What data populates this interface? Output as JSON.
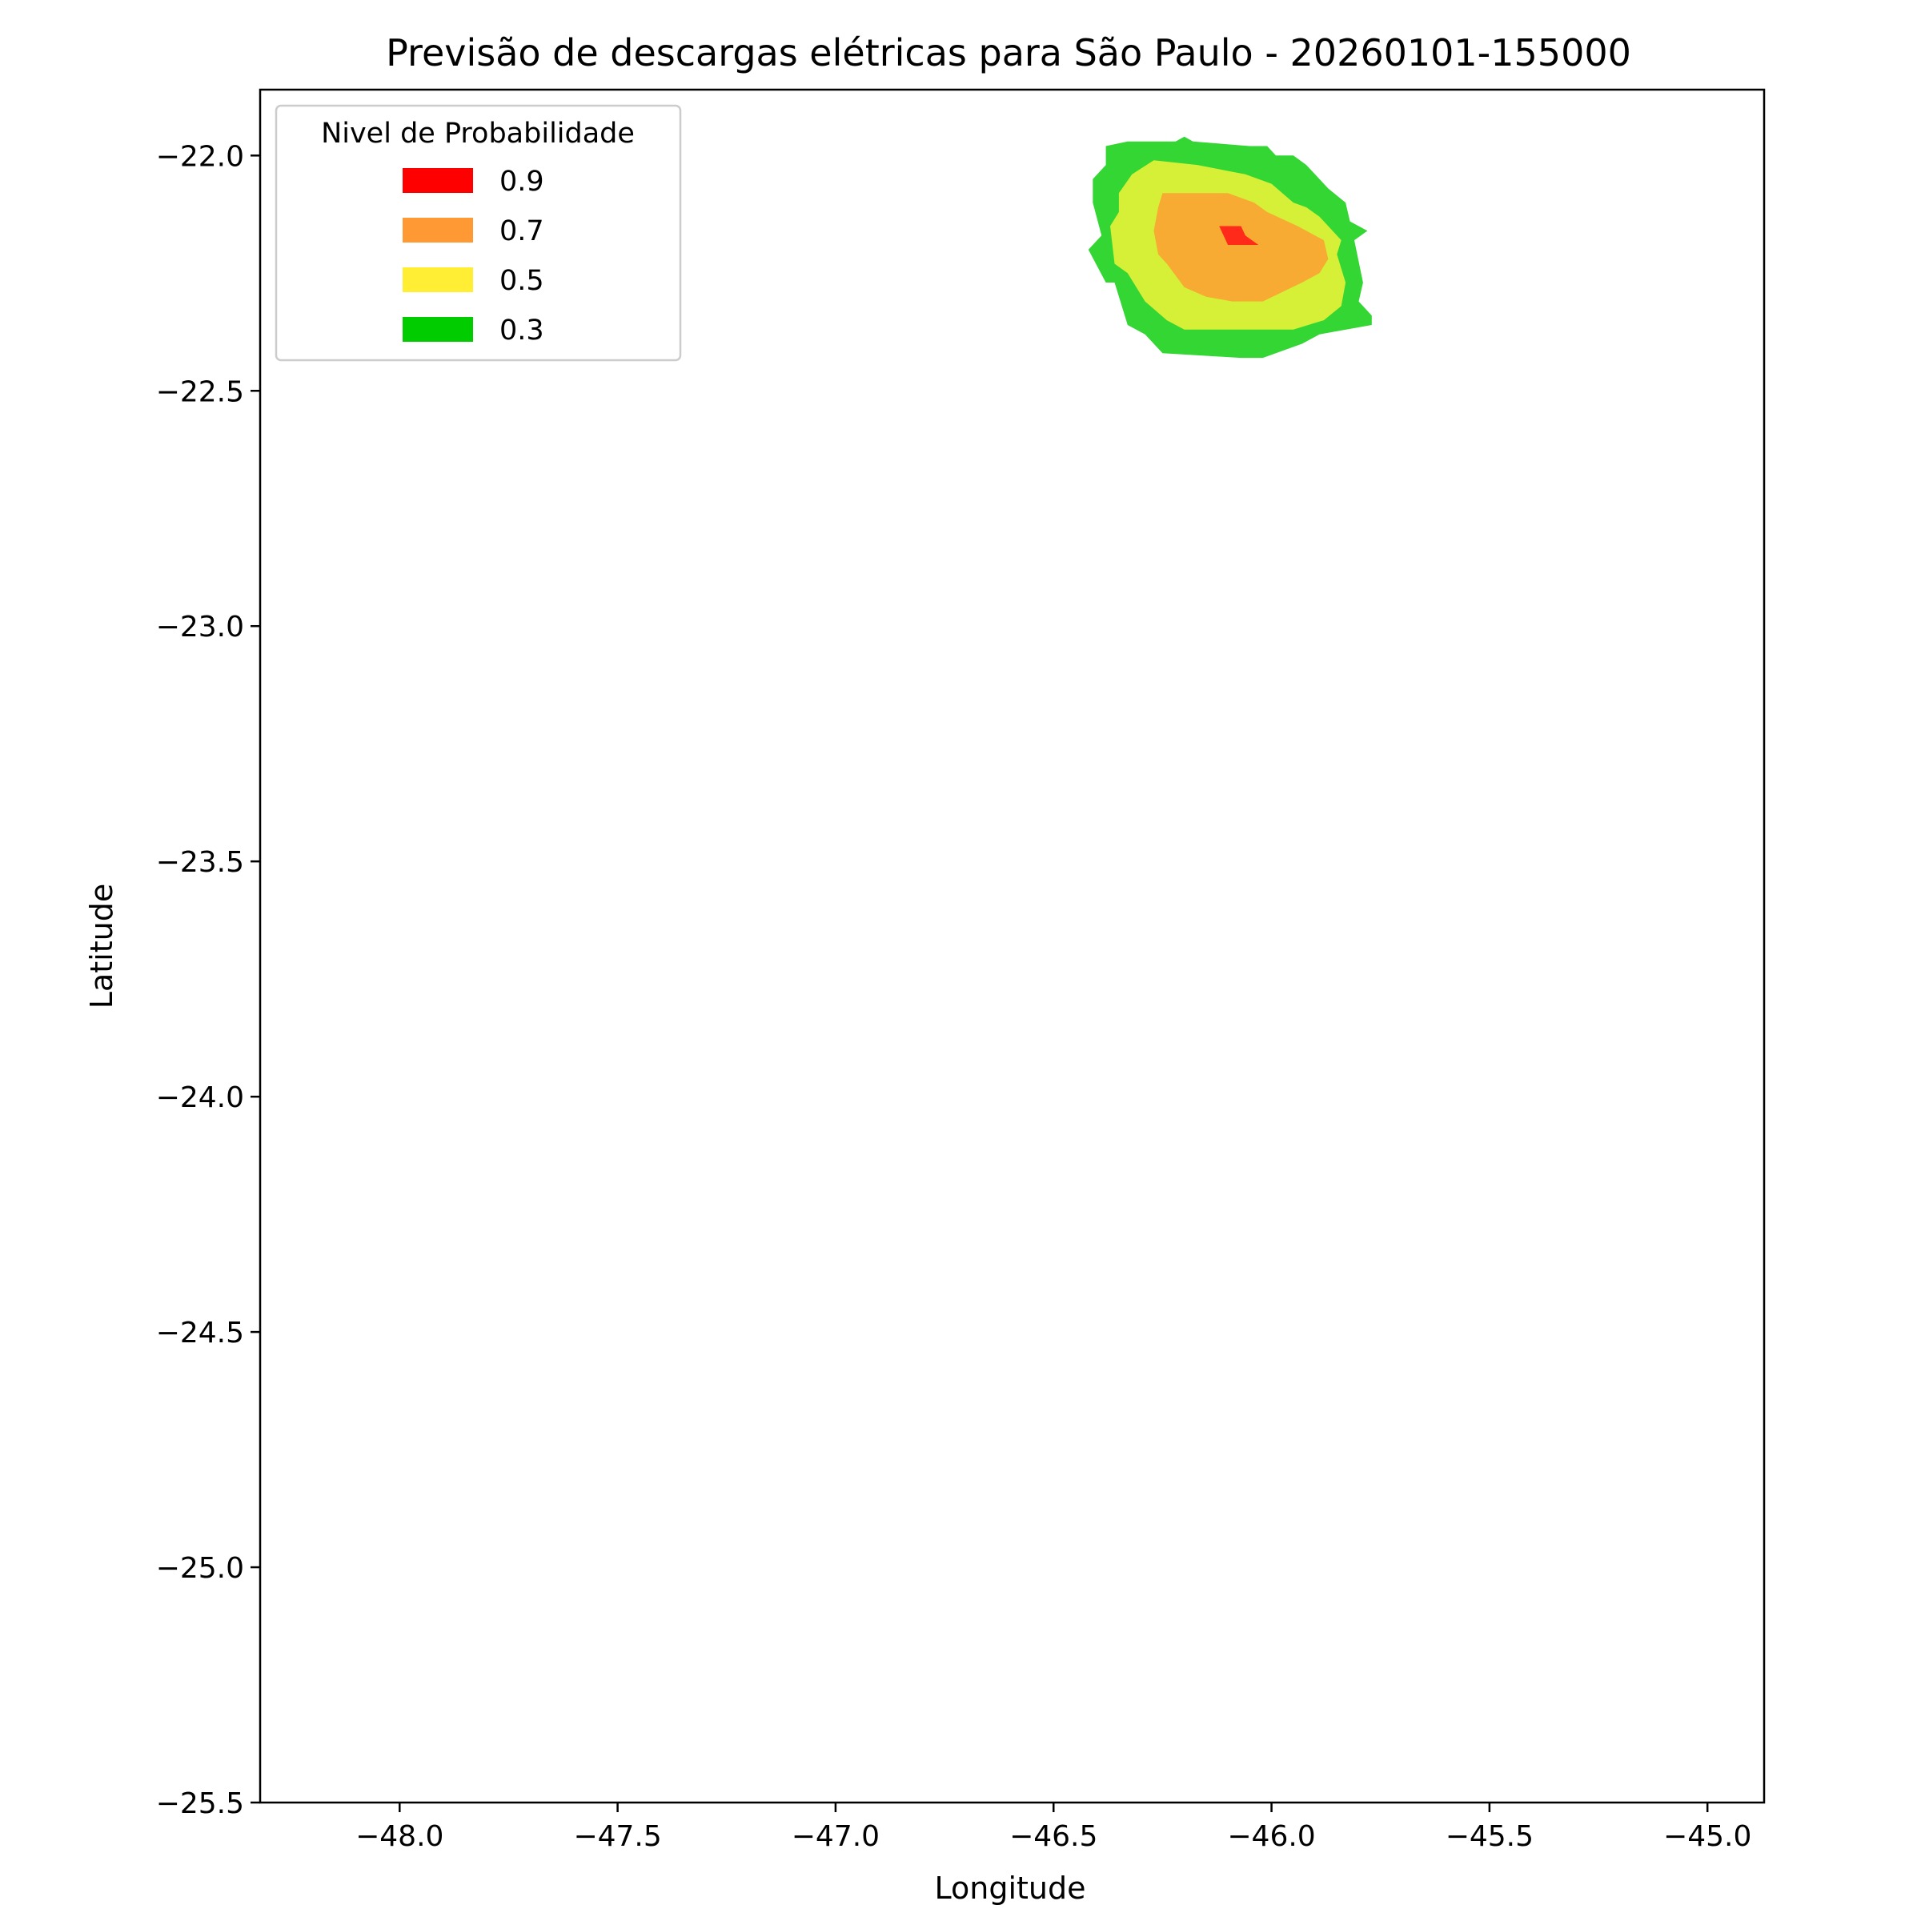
{
  "chart_data": {
    "type": "contour",
    "title": "Previsão de descargas elétricas para São Paulo - 20260101-155000",
    "xlabel": "Longitude",
    "ylabel": "Latitude",
    "xlim": [
      -48.32,
      -44.87
    ],
    "ylim": [
      -25.5,
      -21.86
    ],
    "xticks": [
      -48.0,
      -47.5,
      -47.0,
      -46.5,
      -46.0,
      -45.5,
      -45.0
    ],
    "xtick_labels": [
      "−48.0",
      "−47.5",
      "−47.0",
      "−46.5",
      "−46.0",
      "−45.5",
      "−45.0"
    ],
    "yticks": [
      -22.0,
      -22.5,
      -23.0,
      -23.5,
      -24.0,
      -24.5,
      -25.0,
      -25.5
    ],
    "ytick_labels": [
      "−22.0",
      "−22.5",
      "−23.0",
      "−23.5",
      "−24.0",
      "−24.5",
      "−25.0",
      "−25.5"
    ],
    "grid": false,
    "legend": {
      "title": "Nivel de Probabilidade",
      "placement": "top-left",
      "entries": [
        {
          "label": "0.9",
          "color": "#ff0000"
        },
        {
          "label": "0.7",
          "color": "#ff9933"
        },
        {
          "label": "0.5",
          "color": "#ffee33"
        },
        {
          "label": "0.3",
          "color": "#00cc00"
        }
      ]
    },
    "series": [
      {
        "level": "0.3",
        "color": "#33d633",
        "polygon": [
          [
            -46.38,
            -21.98
          ],
          [
            -46.33,
            -21.97
          ],
          [
            -46.22,
            -21.97
          ],
          [
            -46.2,
            -21.96
          ],
          [
            -46.18,
            -21.97
          ],
          [
            -46.05,
            -21.98
          ],
          [
            -46.01,
            -21.98
          ],
          [
            -45.99,
            -22.0
          ],
          [
            -45.95,
            -22.0
          ],
          [
            -45.92,
            -22.02
          ],
          [
            -45.87,
            -22.07
          ],
          [
            -45.83,
            -22.1
          ],
          [
            -45.82,
            -22.14
          ],
          [
            -45.78,
            -22.16
          ],
          [
            -45.81,
            -22.18
          ],
          [
            -45.79,
            -22.27
          ],
          [
            -45.8,
            -22.31
          ],
          [
            -45.77,
            -22.34
          ],
          [
            -45.77,
            -22.36
          ],
          [
            -45.89,
            -22.38
          ],
          [
            -45.93,
            -22.4
          ],
          [
            -46.02,
            -22.43
          ],
          [
            -46.07,
            -22.43
          ],
          [
            -46.25,
            -22.42
          ],
          [
            -46.29,
            -22.38
          ],
          [
            -46.33,
            -22.36
          ],
          [
            -46.36,
            -22.27
          ],
          [
            -46.38,
            -22.27
          ],
          [
            -46.42,
            -22.2
          ],
          [
            -46.39,
            -22.17
          ],
          [
            -46.41,
            -22.1
          ],
          [
            -46.41,
            -22.05
          ],
          [
            -46.38,
            -22.02
          ]
        ]
      },
      {
        "level": "0.5",
        "color": "#d6f037",
        "polygon": [
          [
            -46.32,
            -22.04
          ],
          [
            -46.27,
            -22.01
          ],
          [
            -46.17,
            -22.02
          ],
          [
            -46.06,
            -22.04
          ],
          [
            -46.0,
            -22.06
          ],
          [
            -45.95,
            -22.1
          ],
          [
            -45.92,
            -22.11
          ],
          [
            -45.89,
            -22.13
          ],
          [
            -45.84,
            -22.18
          ],
          [
            -45.85,
            -22.21
          ],
          [
            -45.83,
            -22.27
          ],
          [
            -45.84,
            -22.32
          ],
          [
            -45.88,
            -22.35
          ],
          [
            -45.95,
            -22.37
          ],
          [
            -46.04,
            -22.37
          ],
          [
            -46.11,
            -22.37
          ],
          [
            -46.2,
            -22.37
          ],
          [
            -46.24,
            -22.35
          ],
          [
            -46.29,
            -22.31
          ],
          [
            -46.33,
            -22.25
          ],
          [
            -46.36,
            -22.23
          ],
          [
            -46.37,
            -22.15
          ],
          [
            -46.35,
            -22.12
          ],
          [
            -46.35,
            -22.08
          ]
        ]
      },
      {
        "level": "0.7",
        "color": "#f7ab33",
        "polygon": [
          [
            -46.25,
            -22.08
          ],
          [
            -46.18,
            -22.08
          ],
          [
            -46.1,
            -22.08
          ],
          [
            -46.04,
            -22.1
          ],
          [
            -46.01,
            -22.12
          ],
          [
            -45.94,
            -22.15
          ],
          [
            -45.92,
            -22.16
          ],
          [
            -45.88,
            -22.18
          ],
          [
            -45.87,
            -22.22
          ],
          [
            -45.89,
            -22.25
          ],
          [
            -45.93,
            -22.27
          ],
          [
            -46.02,
            -22.31
          ],
          [
            -46.09,
            -22.31
          ],
          [
            -46.15,
            -22.3
          ],
          [
            -46.2,
            -22.28
          ],
          [
            -46.24,
            -22.23
          ],
          [
            -46.26,
            -22.21
          ],
          [
            -46.27,
            -22.16
          ],
          [
            -46.26,
            -22.11
          ]
        ]
      },
      {
        "level": "0.9",
        "color": "#ff2a1a",
        "polygon": [
          [
            -46.12,
            -22.15
          ],
          [
            -46.07,
            -22.15
          ],
          [
            -46.06,
            -22.17
          ],
          [
            -46.03,
            -22.19
          ],
          [
            -46.1,
            -22.19
          ]
        ]
      }
    ]
  }
}
